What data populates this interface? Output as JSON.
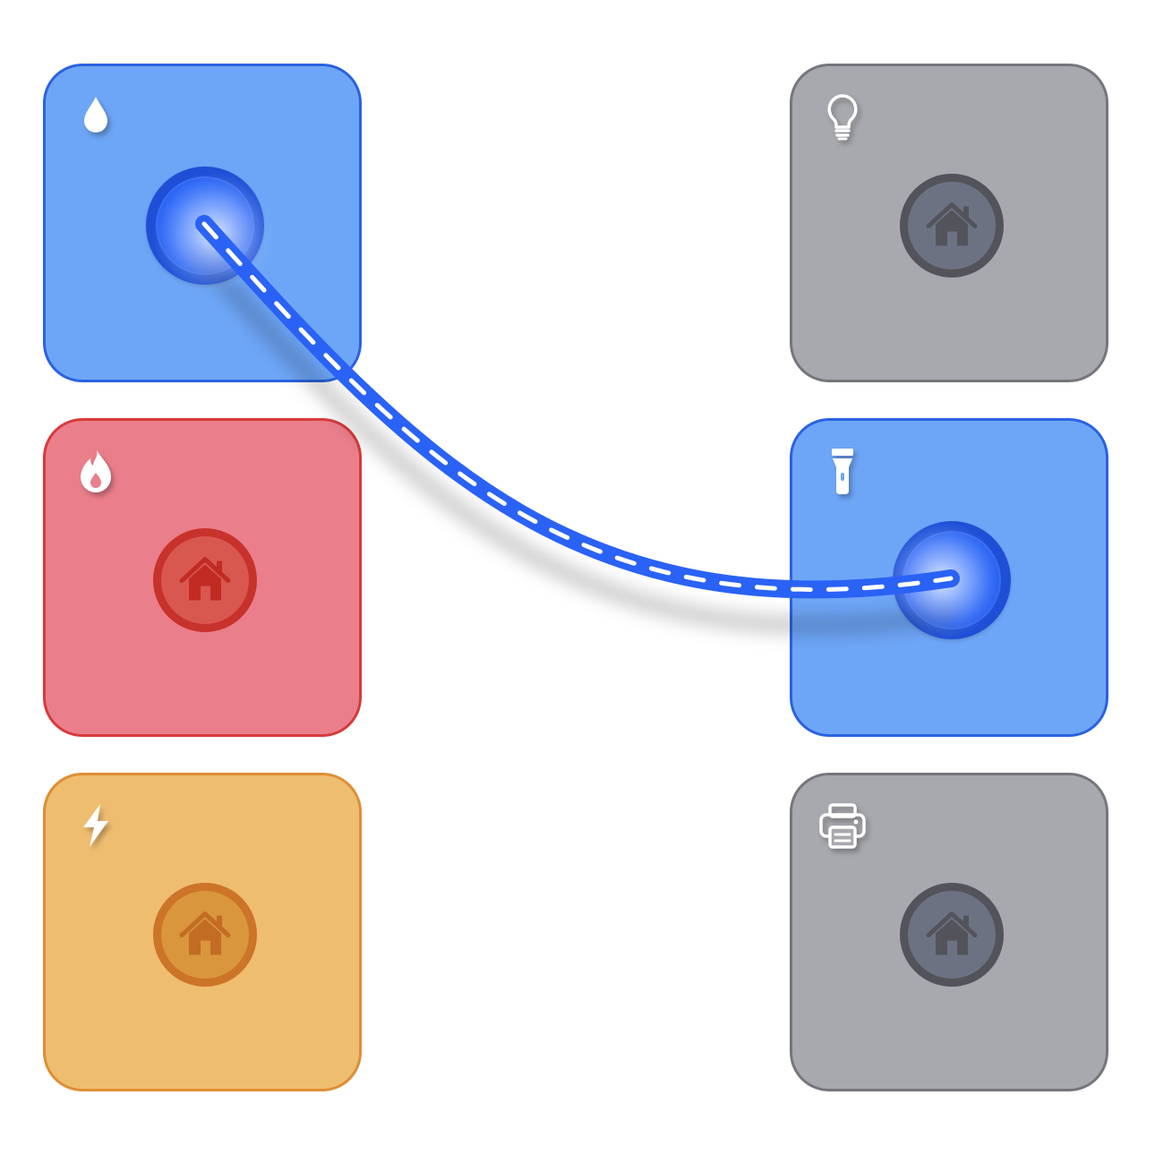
{
  "board": {
    "tiles": [
      {
        "id": "water",
        "color": "blue",
        "state": "connected",
        "icon": "drop-icon",
        "socket_icon": "house-icon"
      },
      {
        "id": "fire",
        "color": "red",
        "state": "idle",
        "icon": "flame-icon",
        "socket_icon": "house-icon"
      },
      {
        "id": "power",
        "color": "orange",
        "state": "idle",
        "icon": "bolt-icon",
        "socket_icon": "house-icon"
      },
      {
        "id": "light",
        "color": "gray",
        "state": "idle",
        "icon": "lightbulb-icon",
        "socket_icon": "house-icon"
      },
      {
        "id": "flashlight",
        "color": "blue",
        "state": "connected",
        "icon": "flashlight-icon",
        "socket_icon": "house-icon"
      },
      {
        "id": "printer",
        "color": "gray",
        "state": "idle",
        "icon": "printer-icon",
        "socket_icon": "house-icon"
      }
    ],
    "connections": [
      {
        "from": "water",
        "to": "flashlight",
        "color": "#2a62f5",
        "style": "dashed"
      }
    ]
  },
  "palette": {
    "blue": {
      "fill": "#6ea6f7",
      "border": "#2a62e0",
      "accent": "#2a62f5"
    },
    "red": {
      "fill": "#ea7f8b",
      "border": "#d83a3a",
      "socket": "#c8322c",
      "socket_fill": "#d8584f",
      "house": "#c12b24"
    },
    "orange": {
      "fill": "#efbd70",
      "border": "#de8e35",
      "socket": "#cc7428",
      "socket_fill": "#d9963c",
      "house": "#c26c24"
    },
    "gray": {
      "fill": "#a8a9ae",
      "border": "#75767d",
      "socket": "#53545b",
      "socket_fill": "#6d7283",
      "house": "#53545b"
    }
  }
}
